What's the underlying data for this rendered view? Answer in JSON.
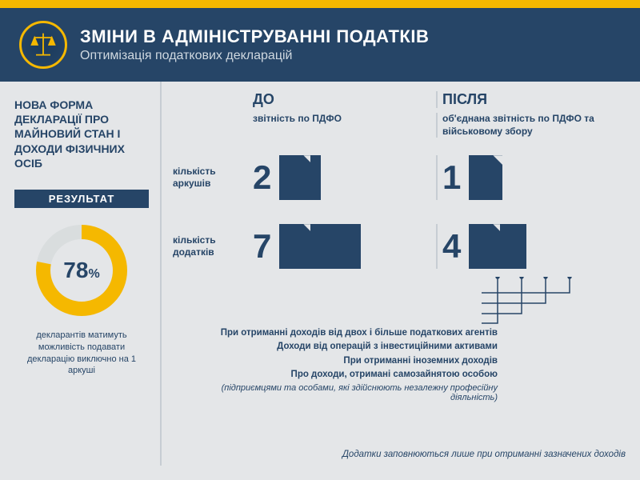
{
  "colors": {
    "brand_dark": "#264567",
    "accent_yellow": "#f5b800",
    "page_bg": "#e4e6e8",
    "divider": "#c7cdd3",
    "donut_track": "#d9ddde"
  },
  "header": {
    "title": "ЗМІНИ В АДМІНІСТРУВАННІ ПОДАТКІВ",
    "subtitle": "Оптимізація податкових декларацій"
  },
  "left": {
    "title": "НОВА ФОРМА ДЕКЛАРАЦІЇ ПРО МАЙНОВИЙ СТАН І ДОХОДИ ФІЗИЧНИХ ОСІБ",
    "result_label": "РЕЗУЛЬТАТ",
    "donut": {
      "percent": 78,
      "size": 120,
      "stroke_width": 18
    },
    "percent_display": "78",
    "percent_suffix": "%",
    "result_text": "декларантів матимуть можливість подавати декларацію виключно на 1 аркуші"
  },
  "columns": {
    "before": "ДО",
    "after": "ПІСЛЯ",
    "before_subtitle": "звітність по ПДФО",
    "after_subtitle": "об'єднана звітність по ПДФО та військовому збору"
  },
  "rows": {
    "sheets": {
      "label": "кількість аркушів",
      "before_value": "2",
      "before_docs": 2,
      "after_value": "1",
      "after_docs": 1
    },
    "attachments": {
      "label": "кількість додатків",
      "before_value": "7",
      "before_docs": 7,
      "after_value": "4",
      "after_docs": 4
    }
  },
  "notes": {
    "lines": [
      "При отриманні доходів від двох і більше податкових агентів",
      "Доходи від операцій з інвестиційними активами",
      "При отриманні іноземних доходів",
      "Про доходи, отримані самозайнятою особою"
    ],
    "italic": "(підприємцями та особами, які здійснюють незалежну професійну діяльність)"
  },
  "footer": "Додатки заповнюються лише при отриманні зазначених доходів"
}
